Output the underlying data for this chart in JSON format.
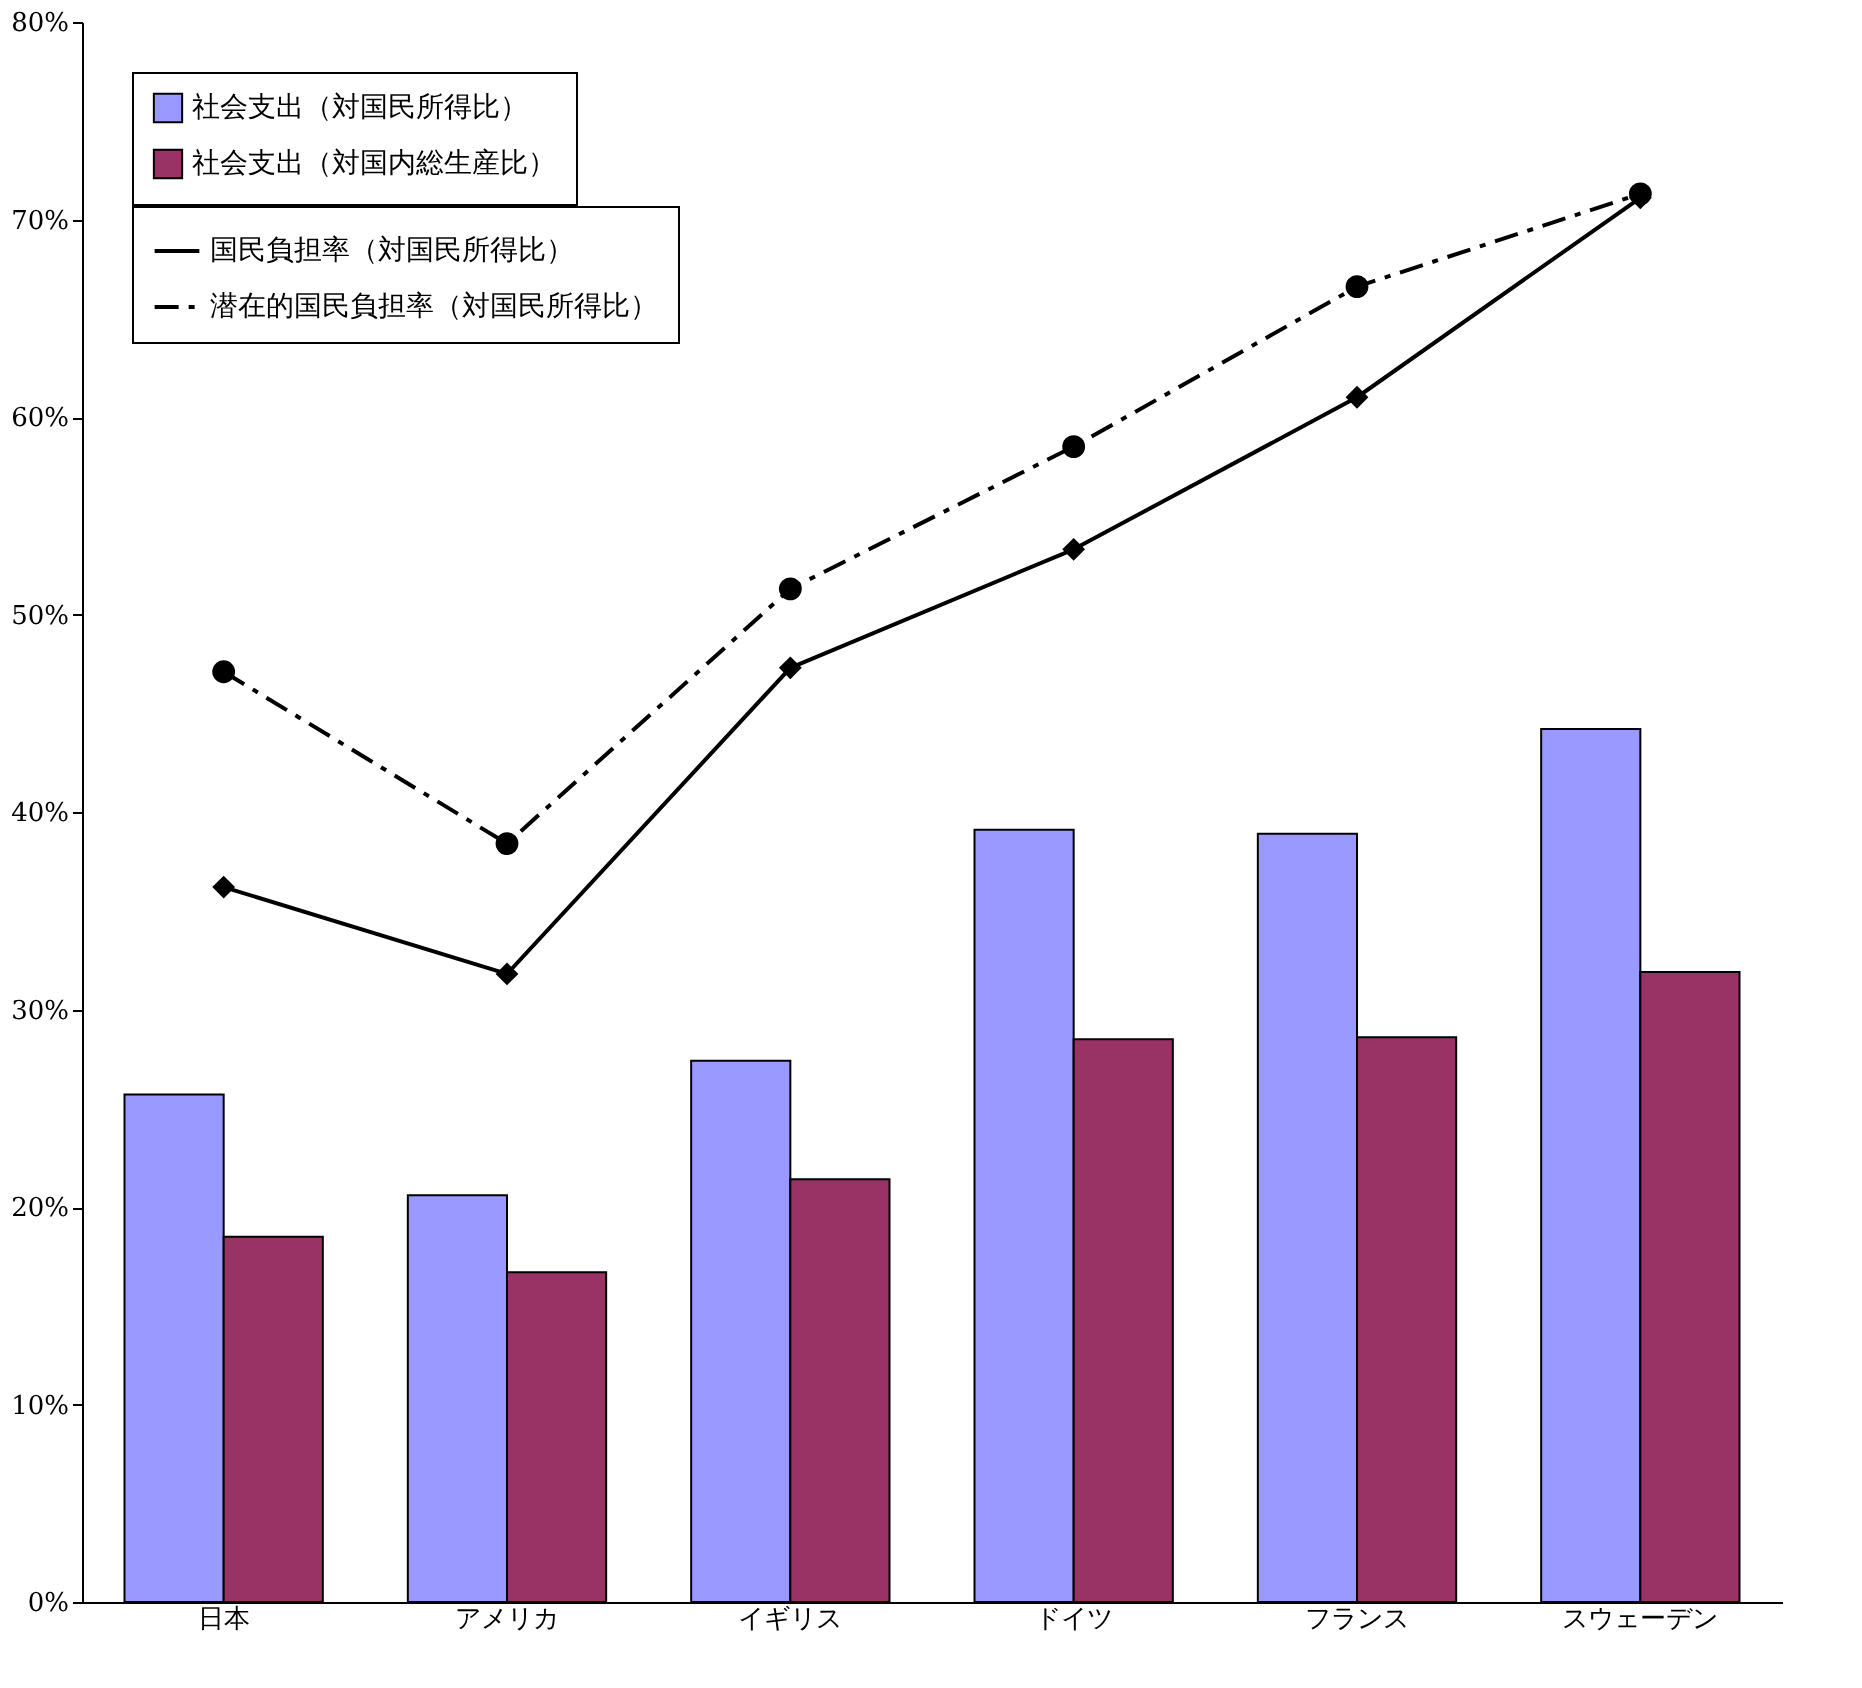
{
  "chart_data": {
    "type": "bar",
    "categories": [
      "日本",
      "アメリカ",
      "イギリス",
      "ドイツ",
      "フランス",
      "スウェーデン"
    ],
    "series": [
      {
        "name": "社会支出（対国民所得比）",
        "color": "#9999ff",
        "values": [
          25.7,
          20.6,
          27.4,
          39.1,
          38.9,
          44.2
        ]
      },
      {
        "name": "社会支出（対国内総生産比）",
        "color": "#993366",
        "values": [
          18.5,
          16.7,
          21.4,
          28.5,
          28.6,
          31.9
        ]
      },
      {
        "name": "国民負担率（対国民所得比）",
        "type": "line",
        "color": "#000000",
        "marker": "diamond",
        "line_style": "solid",
        "values": [
          36.2,
          31.8,
          47.3,
          53.3,
          61.0,
          71.1
        ]
      },
      {
        "name": "潜在的国民負担率（対国民所得比）",
        "type": "line",
        "color": "#000000",
        "marker": "circle",
        "line_style": "dashed",
        "values": [
          47.1,
          38.4,
          51.3,
          58.5,
          66.6,
          71.3
        ]
      }
    ],
    "ylim": [
      0,
      80
    ],
    "yticks": [
      {
        "value": 0,
        "label": "0%"
      },
      {
        "value": 10,
        "label": "10%"
      },
      {
        "value": 20,
        "label": "20%"
      },
      {
        "value": 30,
        "label": "30%"
      },
      {
        "value": 40,
        "label": "40%"
      },
      {
        "value": 50,
        "label": "50%"
      },
      {
        "value": 60,
        "label": "60%"
      },
      {
        "value": 70,
        "label": "70%"
      },
      {
        "value": 80,
        "label": "80%"
      }
    ],
    "grid": false,
    "legend": "top left"
  }
}
